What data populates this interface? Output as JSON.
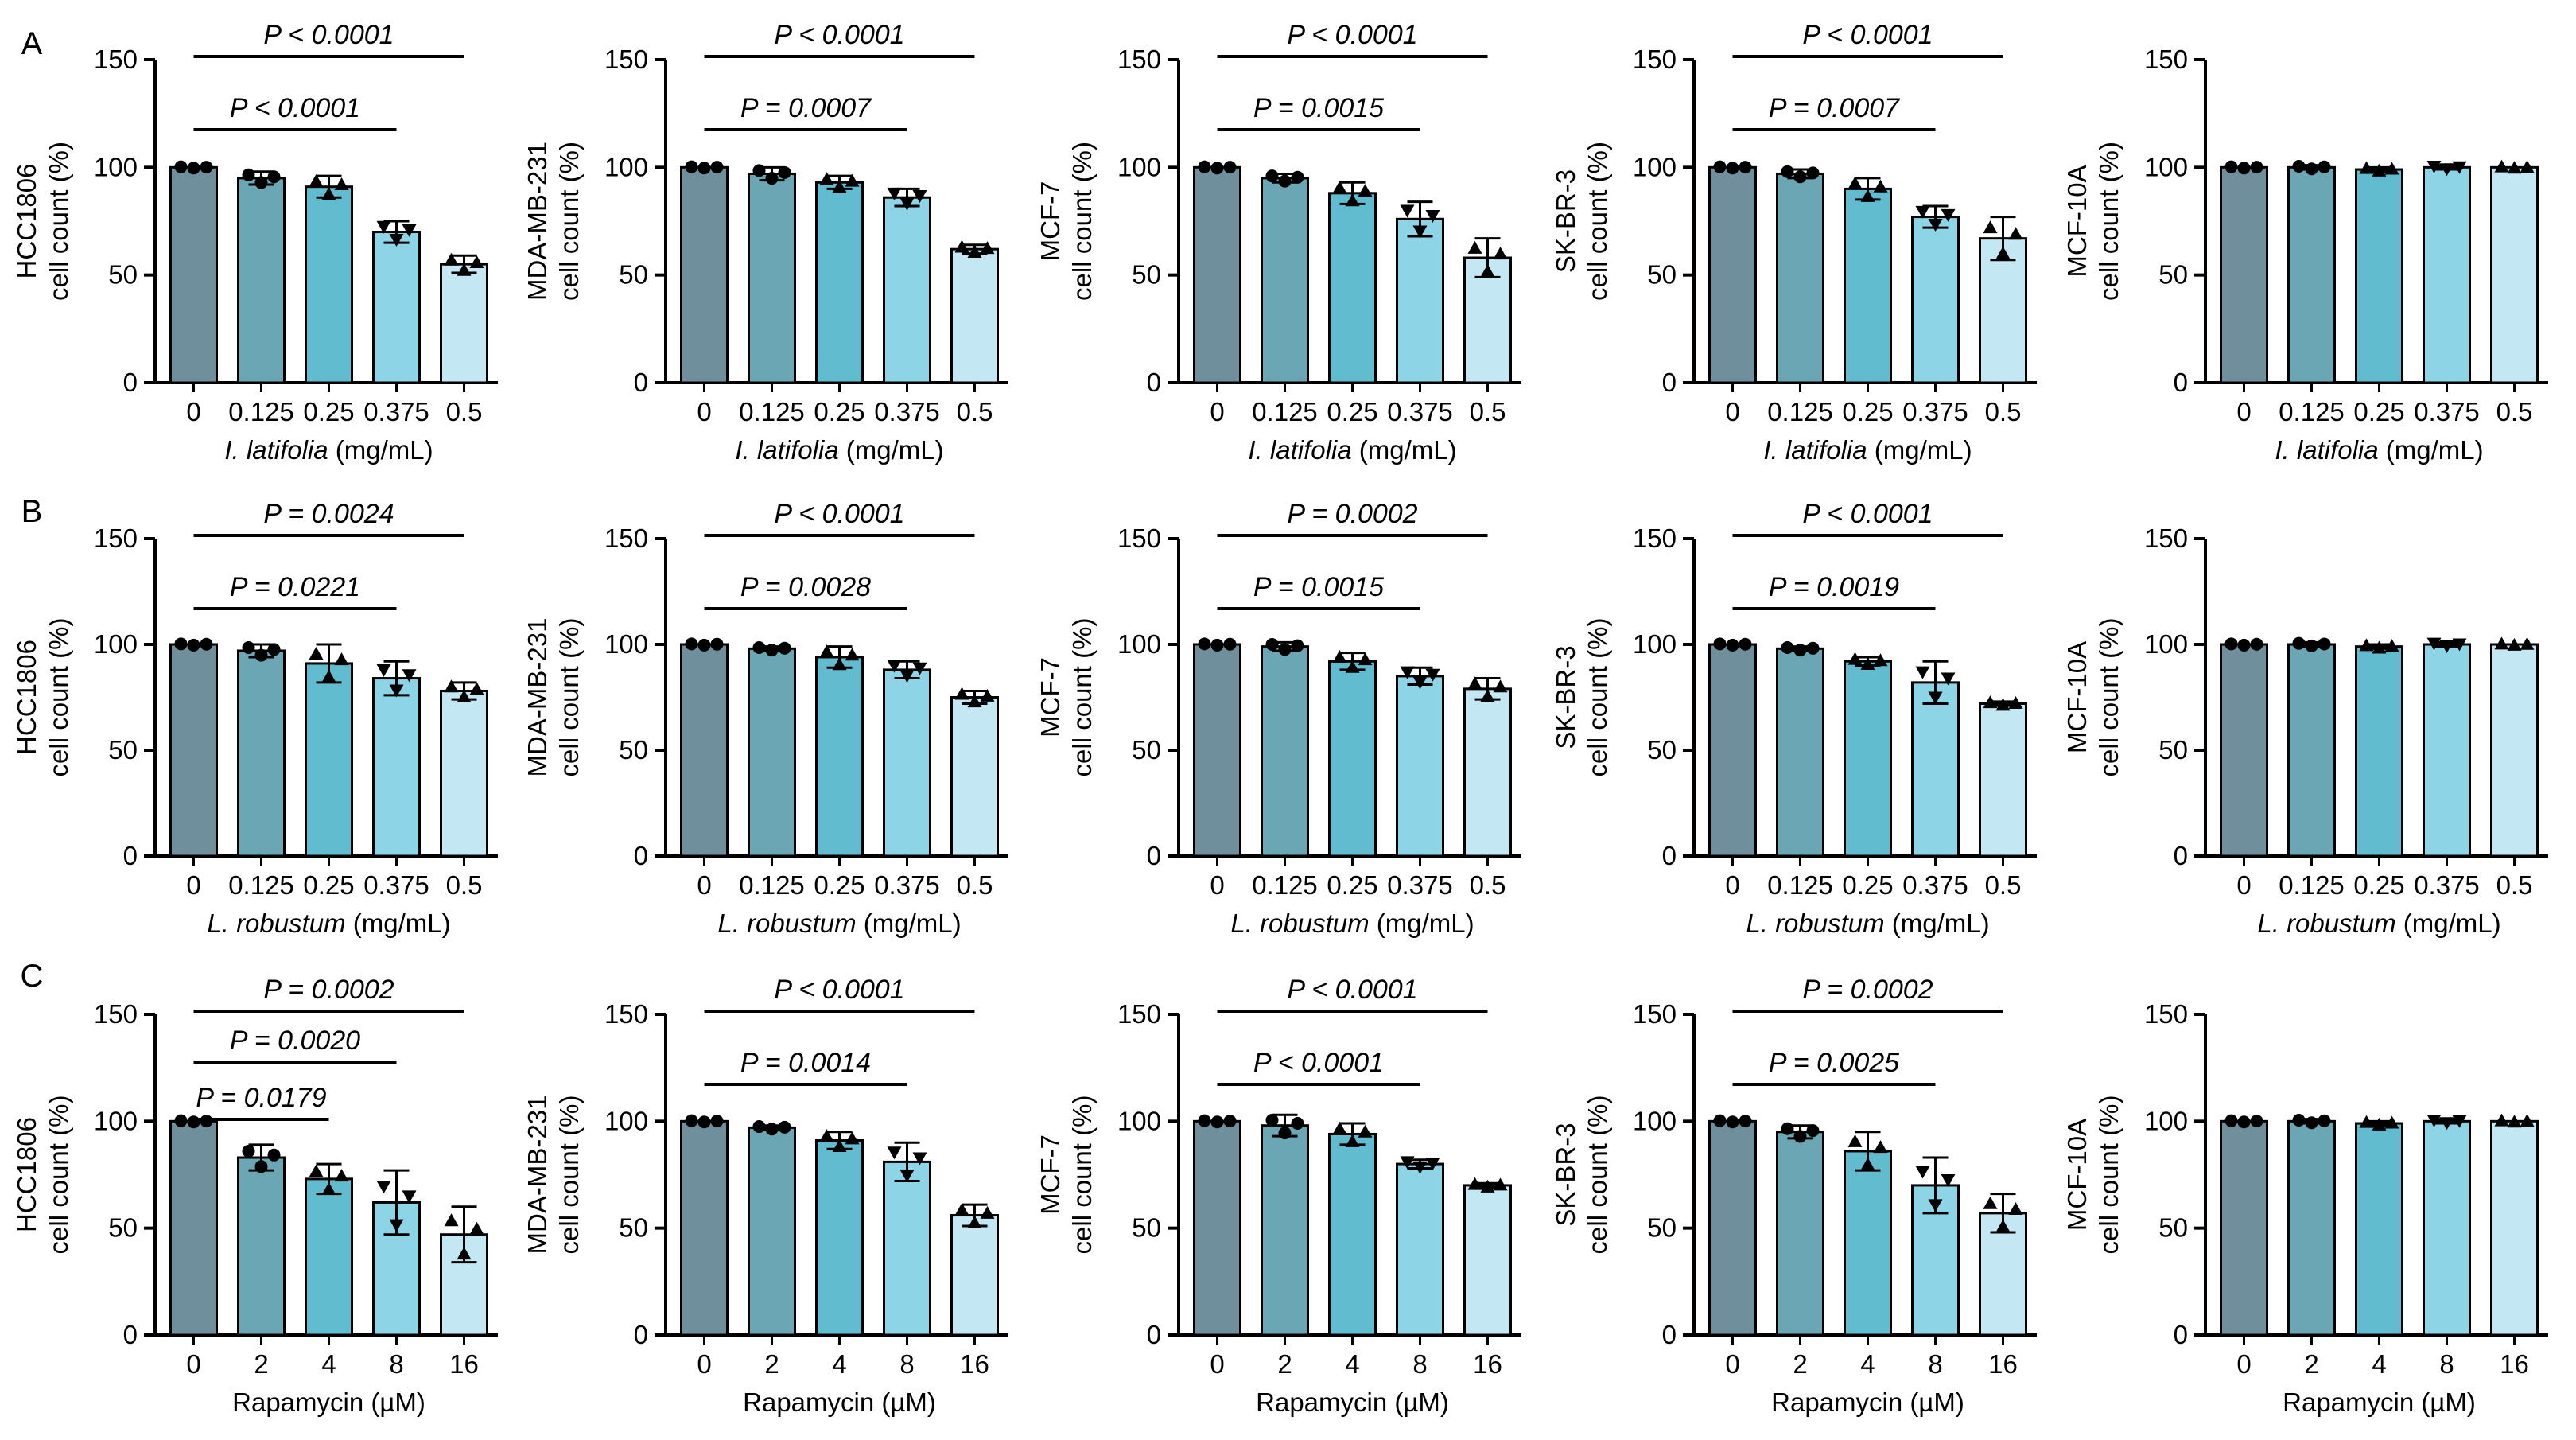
{
  "figure": {
    "row_labels": [
      "A",
      "B",
      "C"
    ],
    "colors": {
      "bars": [
        "#6e8f9b",
        "#6aa6b4",
        "#62bcd0",
        "#8dd4e6",
        "#c3e8f4"
      ],
      "stroke": "#000000"
    }
  },
  "chart_data": [
    {
      "type": "bar",
      "row": 0,
      "col": 0,
      "ylabel_line1": "HCC1806",
      "ylabel_line2": "cell count (%)",
      "xlabel_italic": "I. latifolia",
      "xlabel_rest": " (mg/mL)",
      "categories": [
        "0",
        "0.125",
        "0.25",
        "0.375",
        "0.5"
      ],
      "yticks": [
        "0",
        "50",
        "100",
        "150"
      ],
      "ylim": [
        0,
        150
      ],
      "values": [
        100,
        95,
        91,
        70,
        55
      ],
      "errors": [
        0.5,
        3,
        5,
        5,
        4
      ],
      "sig": [
        {
          "text": "P < 0.0001",
          "from": 0,
          "to": 4
        },
        {
          "text": "P < 0.0001",
          "from": 0,
          "to": 3
        }
      ]
    },
    {
      "type": "bar",
      "row": 0,
      "col": 1,
      "ylabel_line1": "MDA-MB-231",
      "ylabel_line2": "cell count (%)",
      "xlabel_italic": "I. latifolia",
      "xlabel_rest": " (mg/mL)",
      "categories": [
        "0",
        "0.125",
        "0.25",
        "0.375",
        "0.5"
      ],
      "yticks": [
        "0",
        "50",
        "100",
        "150"
      ],
      "ylim": [
        0,
        150
      ],
      "values": [
        100,
        97,
        93,
        86,
        62
      ],
      "errors": [
        0.5,
        3,
        3,
        4,
        2
      ],
      "sig": [
        {
          "text": "P < 0.0001",
          "from": 0,
          "to": 4
        },
        {
          "text": "P = 0.0007",
          "from": 0,
          "to": 3
        }
      ]
    },
    {
      "type": "bar",
      "row": 0,
      "col": 2,
      "ylabel_line1": "MCF-7",
      "ylabel_line2": "cell count (%)",
      "xlabel_italic": "I. latifolia",
      "xlabel_rest": " (mg/mL)",
      "categories": [
        "0",
        "0.125",
        "0.25",
        "0.375",
        "0.5"
      ],
      "yticks": [
        "0",
        "50",
        "100",
        "150"
      ],
      "ylim": [
        0,
        150
      ],
      "values": [
        100,
        95,
        88,
        76,
        58
      ],
      "errors": [
        0.5,
        2,
        5,
        8,
        9
      ],
      "sig": [
        {
          "text": "P < 0.0001",
          "from": 0,
          "to": 4
        },
        {
          "text": "P = 0.0015",
          "from": 0,
          "to": 3
        }
      ]
    },
    {
      "type": "bar",
      "row": 0,
      "col": 3,
      "ylabel_line1": "SK-BR-3",
      "ylabel_line2": "cell count (%)",
      "xlabel_italic": "I. latifolia",
      "xlabel_rest": " (mg/mL)",
      "categories": [
        "0",
        "0.125",
        "0.25",
        "0.375",
        "0.5"
      ],
      "yticks": [
        "0",
        "50",
        "100",
        "150"
      ],
      "ylim": [
        0,
        150
      ],
      "values": [
        100,
        97,
        90,
        77,
        67
      ],
      "errors": [
        0.5,
        2,
        5,
        5,
        10
      ],
      "sig": [
        {
          "text": "P < 0.0001",
          "from": 0,
          "to": 4
        },
        {
          "text": "P = 0.0007",
          "from": 0,
          "to": 3
        }
      ]
    },
    {
      "type": "bar",
      "row": 0,
      "col": 4,
      "ylabel_line1": "MCF-10A",
      "ylabel_line2": "cell count (%)",
      "xlabel_italic": "I. latifolia",
      "xlabel_rest": " (mg/mL)",
      "categories": [
        "0",
        "0.125",
        "0.25",
        "0.375",
        "0.5"
      ],
      "yticks": [
        "0",
        "50",
        "100",
        "150"
      ],
      "ylim": [
        0,
        150
      ],
      "values": [
        100,
        100,
        99,
        100,
        100
      ],
      "errors": [
        0.5,
        1,
        1,
        1,
        0.5
      ],
      "sig": []
    },
    {
      "type": "bar",
      "row": 1,
      "col": 0,
      "ylabel_line1": "HCC1806",
      "ylabel_line2": "cell count (%)",
      "xlabel_italic": "L. robustum",
      "xlabel_rest": " (mg/mL)",
      "categories": [
        "0",
        "0.125",
        "0.25",
        "0.375",
        "0.5"
      ],
      "yticks": [
        "0",
        "50",
        "100",
        "150"
      ],
      "ylim": [
        0,
        150
      ],
      "values": [
        100,
        97,
        91,
        84,
        78
      ],
      "errors": [
        0.5,
        3,
        9,
        8,
        4
      ],
      "sig": [
        {
          "text": "P = 0.0024",
          "from": 0,
          "to": 4
        },
        {
          "text": "P = 0.0221",
          "from": 0,
          "to": 3
        }
      ]
    },
    {
      "type": "bar",
      "row": 1,
      "col": 1,
      "ylabel_line1": "MDA-MB-231",
      "ylabel_line2": "cell count (%)",
      "xlabel_italic": "L. robustum",
      "xlabel_rest": " (mg/mL)",
      "categories": [
        "0",
        "0.125",
        "0.25",
        "0.375",
        "0.5"
      ],
      "yticks": [
        "0",
        "50",
        "100",
        "150"
      ],
      "ylim": [
        0,
        150
      ],
      "values": [
        100,
        98,
        94,
        88,
        75
      ],
      "errors": [
        0.5,
        1,
        5,
        4,
        3
      ],
      "sig": [
        {
          "text": "P < 0.0001",
          "from": 0,
          "to": 4
        },
        {
          "text": "P = 0.0028",
          "from": 0,
          "to": 3
        }
      ]
    },
    {
      "type": "bar",
      "row": 1,
      "col": 2,
      "ylabel_line1": "MCF-7",
      "ylabel_line2": "cell count (%)",
      "xlabel_italic": "L. robustum",
      "xlabel_rest": " (mg/mL)",
      "categories": [
        "0",
        "0.125",
        "0.25",
        "0.375",
        "0.5"
      ],
      "yticks": [
        "0",
        "50",
        "100",
        "150"
      ],
      "ylim": [
        0,
        150
      ],
      "values": [
        100,
        99,
        92,
        85,
        79
      ],
      "errors": [
        0.5,
        2,
        4,
        4,
        5
      ],
      "sig": [
        {
          "text": "P = 0.0002",
          "from": 0,
          "to": 4
        },
        {
          "text": "P = 0.0015",
          "from": 0,
          "to": 3
        }
      ]
    },
    {
      "type": "bar",
      "row": 1,
      "col": 3,
      "ylabel_line1": "SK-BR-3",
      "ylabel_line2": "cell count (%)",
      "xlabel_italic": "L. robustum",
      "xlabel_rest": " (mg/mL)",
      "categories": [
        "0",
        "0.125",
        "0.25",
        "0.375",
        "0.5"
      ],
      "yticks": [
        "0",
        "50",
        "100",
        "150"
      ],
      "ylim": [
        0,
        150
      ],
      "values": [
        100,
        98,
        92,
        82,
        72
      ],
      "errors": [
        0.5,
        1,
        2,
        10,
        1
      ],
      "sig": [
        {
          "text": "P < 0.0001",
          "from": 0,
          "to": 4
        },
        {
          "text": "P = 0.0019",
          "from": 0,
          "to": 3
        }
      ]
    },
    {
      "type": "bar",
      "row": 1,
      "col": 4,
      "ylabel_line1": "MCF-10A",
      "ylabel_line2": "cell count (%)",
      "xlabel_italic": "L. robustum",
      "xlabel_rest": " (mg/mL)",
      "categories": [
        "0",
        "0.125",
        "0.25",
        "0.375",
        "0.5"
      ],
      "yticks": [
        "0",
        "50",
        "100",
        "150"
      ],
      "ylim": [
        0,
        150
      ],
      "values": [
        100,
        100,
        99,
        100,
        100
      ],
      "errors": [
        0.5,
        1,
        1,
        1,
        0.5
      ],
      "sig": []
    },
    {
      "type": "bar",
      "row": 2,
      "col": 0,
      "ylabel_line1": "HCC1806",
      "ylabel_line2": "cell count (%)",
      "xlabel_italic": "",
      "xlabel_rest": "Rapamycin (µM)",
      "categories": [
        "0",
        "2",
        "4",
        "8",
        "16"
      ],
      "yticks": [
        "0",
        "50",
        "100",
        "150"
      ],
      "ylim": [
        0,
        150
      ],
      "values": [
        100,
        83,
        73,
        62,
        47
      ],
      "errors": [
        0.5,
        6,
        7,
        15,
        13
      ],
      "sig": [
        {
          "text": "P = 0.0002",
          "from": 0,
          "to": 4
        },
        {
          "text": "P = 0.0020",
          "from": 0,
          "to": 3
        },
        {
          "text": "P = 0.0179",
          "from": 0,
          "to": 2
        }
      ]
    },
    {
      "type": "bar",
      "row": 2,
      "col": 1,
      "ylabel_line1": "MDA-MB-231",
      "ylabel_line2": "cell count (%)",
      "xlabel_italic": "",
      "xlabel_rest": "Rapamycin (µM)",
      "categories": [
        "0",
        "2",
        "4",
        "8",
        "16"
      ],
      "yticks": [
        "0",
        "50",
        "100",
        "150"
      ],
      "ylim": [
        0,
        150
      ],
      "values": [
        100,
        97,
        91,
        81,
        56
      ],
      "errors": [
        0.5,
        1,
        4,
        9,
        5
      ],
      "sig": [
        {
          "text": "P < 0.0001",
          "from": 0,
          "to": 4
        },
        {
          "text": "P = 0.0014",
          "from": 0,
          "to": 3
        }
      ]
    },
    {
      "type": "bar",
      "row": 2,
      "col": 2,
      "ylabel_line1": "MCF-7",
      "ylabel_line2": "cell count (%)",
      "xlabel_italic": "",
      "xlabel_rest": "Rapamycin (µM)",
      "categories": [
        "0",
        "2",
        "4",
        "8",
        "16"
      ],
      "yticks": [
        "0",
        "50",
        "100",
        "150"
      ],
      "ylim": [
        0,
        150
      ],
      "values": [
        100,
        98,
        94,
        80,
        70
      ],
      "errors": [
        0.5,
        5,
        5,
        2,
        1
      ],
      "sig": [
        {
          "text": "P < 0.0001",
          "from": 0,
          "to": 4
        },
        {
          "text": "P < 0.0001",
          "from": 0,
          "to": 3
        }
      ]
    },
    {
      "type": "bar",
      "row": 2,
      "col": 3,
      "ylabel_line1": "SK-BR-3",
      "ylabel_line2": "cell count (%)",
      "xlabel_italic": "",
      "xlabel_rest": "Rapamycin (µM)",
      "categories": [
        "0",
        "2",
        "4",
        "8",
        "16"
      ],
      "yticks": [
        "0",
        "50",
        "100",
        "150"
      ],
      "ylim": [
        0,
        150
      ],
      "values": [
        100,
        95,
        86,
        70,
        57
      ],
      "errors": [
        0.5,
        3,
        9,
        13,
        9
      ],
      "sig": [
        {
          "text": "P = 0.0002",
          "from": 0,
          "to": 4
        },
        {
          "text": "P = 0.0025",
          "from": 0,
          "to": 3
        }
      ]
    },
    {
      "type": "bar",
      "row": 2,
      "col": 4,
      "ylabel_line1": "MCF-10A",
      "ylabel_line2": "cell count (%)",
      "xlabel_italic": "",
      "xlabel_rest": "Rapamycin (µM)",
      "categories": [
        "0",
        "2",
        "4",
        "8",
        "16"
      ],
      "yticks": [
        "0",
        "50",
        "100",
        "150"
      ],
      "ylim": [
        0,
        150
      ],
      "values": [
        100,
        100,
        99,
        100,
        100
      ],
      "errors": [
        0.5,
        1,
        1,
        1,
        0.5
      ],
      "sig": []
    }
  ]
}
